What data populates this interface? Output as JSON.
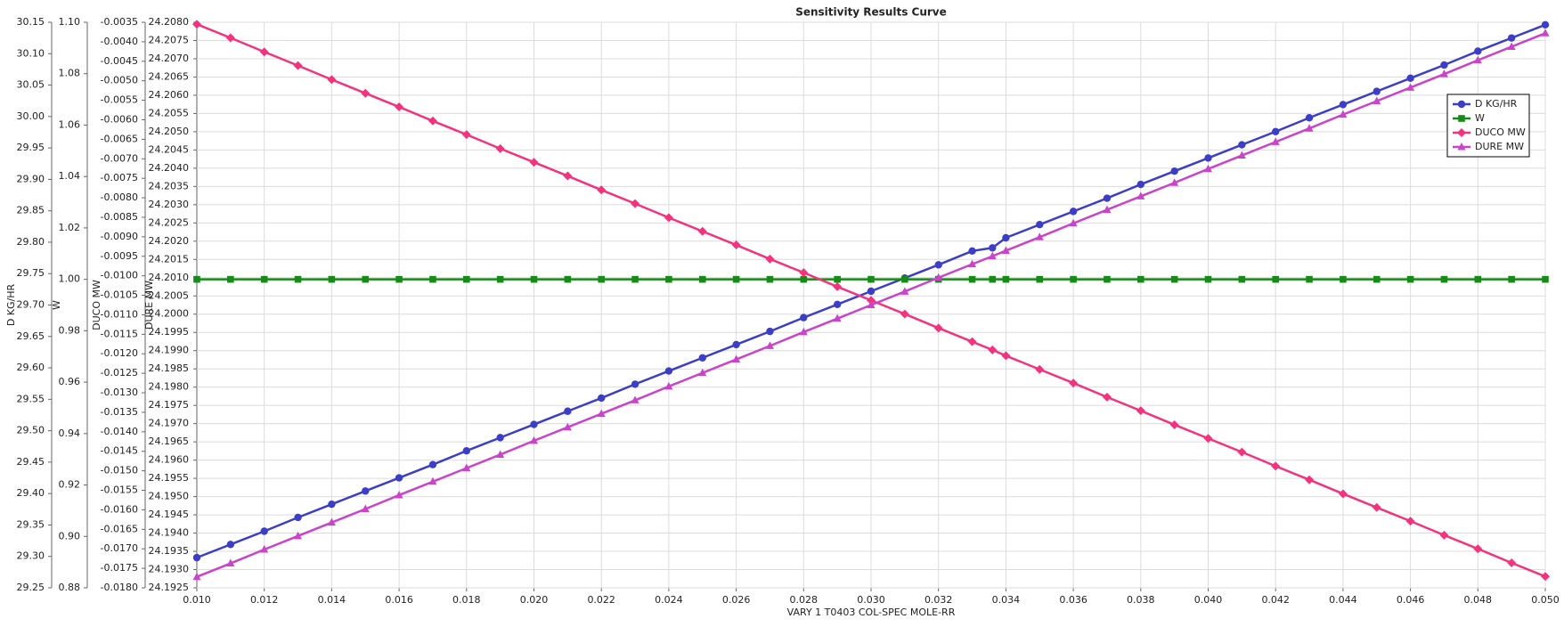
{
  "chart_data": {
    "type": "line",
    "title": "Sensitivity Results Curve",
    "xlabel": "VARY   1 T0403 COL-SPEC MOLE-RR",
    "x": [
      0.01,
      0.011,
      0.012,
      0.013,
      0.014,
      0.015,
      0.016,
      0.017,
      0.018,
      0.019,
      0.02,
      0.021,
      0.022,
      0.023,
      0.024,
      0.025,
      0.026,
      0.027,
      0.028,
      0.029,
      0.03,
      0.031,
      0.032,
      0.033,
      0.0336,
      0.034,
      0.035,
      0.036,
      0.037,
      0.038,
      0.039,
      0.04,
      0.041,
      0.042,
      0.043,
      0.044,
      0.045,
      0.046,
      0.047,
      0.048,
      0.049,
      0.05
    ],
    "xlim": [
      0.01,
      0.05
    ],
    "xticks": [
      {
        "value": 0.01,
        "label": "0.010"
      },
      0.012,
      0.014,
      0.016,
      0.018,
      {
        "value": 0.02,
        "label": "0.020"
      },
      0.022,
      0.024,
      0.026,
      0.028,
      {
        "value": 0.03,
        "label": "0.030"
      },
      0.032,
      0.034,
      0.036,
      0.038,
      {
        "value": 0.04,
        "label": "0.040"
      },
      0.042,
      0.044,
      0.046,
      0.048,
      {
        "value": 0.05,
        "label": "0.050"
      }
    ],
    "ylabel": "D KG/HR",
    "ylim": [
      29.25,
      30.15
    ],
    "yticks": [
      29.25,
      {
        "value": 29.3,
        "label": "29.30"
      },
      29.35,
      {
        "value": 29.4,
        "label": "29.40"
      },
      29.45,
      {
        "value": 29.5,
        "label": "29.50"
      },
      29.55,
      {
        "value": 29.6,
        "label": "29.60"
      },
      29.65,
      {
        "value": 29.7,
        "label": "29.70"
      },
      29.75,
      {
        "value": 29.8,
        "label": "29.80"
      },
      29.85,
      {
        "value": 29.9,
        "label": "29.90"
      },
      29.95,
      {
        "value": 30,
        "label": "30.00"
      },
      30.05,
      {
        "value": 30.1,
        "label": "30.10"
      },
      30.15
    ],
    "y2label": "W",
    "y2lim": [
      0.88,
      1.1
    ],
    "y2ticks": [
      0.88,
      {
        "value": 0.9,
        "label": "0.90"
      },
      0.92,
      0.94,
      0.96,
      0.98,
      {
        "value": 1,
        "label": "1.00"
      },
      1.02,
      1.04,
      1.06,
      1.08,
      {
        "value": 1.1,
        "label": "1.10"
      }
    ],
    "y3label": "DUCO MW",
    "y3lim": [
      -0.018,
      -0.0035
    ],
    "y3ticks": [
      {
        "value": -0.018,
        "label": "-0.0180"
      },
      -0.0175,
      {
        "value": -0.017,
        "label": "-0.0170"
      },
      -0.0165,
      {
        "value": -0.016,
        "label": "-0.0160"
      },
      -0.0155,
      {
        "value": -0.015,
        "label": "-0.0150"
      },
      -0.0145,
      {
        "value": -0.014,
        "label": "-0.0140"
      },
      -0.0135,
      {
        "value": -0.013,
        "label": "-0.0130"
      },
      -0.0125,
      {
        "value": -0.012,
        "label": "-0.0120"
      },
      -0.0115,
      {
        "value": -0.011,
        "label": "-0.0110"
      },
      -0.0105,
      {
        "value": -0.01,
        "label": "-0.0100"
      },
      -0.0095,
      {
        "value": -0.009,
        "label": "-0.0090"
      },
      -0.0085,
      {
        "value": -0.008,
        "label": "-0.0080"
      },
      -0.0075,
      {
        "value": -0.007,
        "label": "-0.0070"
      },
      -0.0065,
      {
        "value": -0.006,
        "label": "-0.0060"
      },
      -0.0055,
      {
        "value": -0.005,
        "label": "-0.0050"
      },
      -0.0045,
      {
        "value": -0.004,
        "label": "-0.0040"
      },
      -0.0035
    ],
    "y4label": "DURE MW",
    "y4lim": [
      24.1925,
      24.208
    ],
    "y4ticks": [
      24.1925,
      {
        "value": 24.193,
        "label": "24.1930"
      },
      24.1935,
      {
        "value": 24.194,
        "label": "24.1940"
      },
      24.1945,
      {
        "value": 24.195,
        "label": "24.1950"
      },
      24.1955,
      {
        "value": 24.196,
        "label": "24.1960"
      },
      24.1965,
      {
        "value": 24.197,
        "label": "24.1970"
      },
      24.1975,
      {
        "value": 24.198,
        "label": "24.1980"
      },
      24.1985,
      {
        "value": 24.199,
        "label": "24.1990"
      },
      24.1995,
      {
        "value": 24.2,
        "label": "24.2000"
      },
      24.2005,
      {
        "value": 24.201,
        "label": "24.2010"
      },
      24.2015,
      {
        "value": 24.202,
        "label": "24.2020"
      },
      24.2025,
      {
        "value": 24.203,
        "label": "24.2030"
      },
      24.2035,
      {
        "value": 24.204,
        "label": "24.2040"
      },
      24.2045,
      {
        "value": 24.205,
        "label": "24.2050"
      },
      24.2055,
      {
        "value": 24.206,
        "label": "24.2060"
      },
      24.2065,
      {
        "value": 24.207,
        "label": "24.2070"
      },
      24.2075,
      {
        "value": 24.208,
        "label": "24.2080"
      }
    ],
    "grid": true,
    "legend": "upper right",
    "series": [
      {
        "name": "D KG/HR",
        "color": "#3c3fc6",
        "marker": "circle",
        "axis": "y",
        "values": [
          29.298,
          29.319,
          29.34,
          29.362,
          29.383,
          29.404,
          29.425,
          29.446,
          29.468,
          29.489,
          29.51,
          29.531,
          29.552,
          29.574,
          29.595,
          29.616,
          29.637,
          29.658,
          29.68,
          29.701,
          29.722,
          29.743,
          29.764,
          29.786,
          29.791,
          29.807,
          29.828,
          29.849,
          29.87,
          29.892,
          29.913,
          29.934,
          29.955,
          29.976,
          29.998,
          30.019,
          30.04,
          30.061,
          30.082,
          30.104,
          30.125,
          30.146
        ]
      },
      {
        "name": "W",
        "color": "#178a17",
        "marker": "square",
        "axis": "y2",
        "values": [
          1,
          1,
          1,
          1,
          1,
          1,
          1,
          1,
          1,
          1,
          1,
          1,
          1,
          1,
          1,
          1,
          1,
          1,
          1,
          1,
          1,
          1,
          1,
          1,
          1,
          1,
          1,
          1,
          1,
          1,
          1,
          1,
          1,
          1,
          1,
          1,
          1,
          1,
          1,
          1,
          1,
          1
        ]
      },
      {
        "name": "DUCO MW",
        "color": "#f2347f",
        "marker": "diamond",
        "axis": "y3",
        "values": [
          -0.00355,
          -0.0039,
          -0.00426,
          -0.00461,
          -0.00497,
          -0.00532,
          -0.00567,
          -0.00603,
          -0.00638,
          -0.00674,
          -0.00709,
          -0.00744,
          -0.0078,
          -0.00815,
          -0.00851,
          -0.00886,
          -0.00921,
          -0.00957,
          -0.00992,
          -0.01028,
          -0.01063,
          -0.01098,
          -0.01134,
          -0.01169,
          -0.0119,
          -0.01205,
          -0.0124,
          -0.01275,
          -0.01311,
          -0.01346,
          -0.01382,
          -0.01417,
          -0.01452,
          -0.01488,
          -0.01523,
          -0.01559,
          -0.01594,
          -0.01629,
          -0.01665,
          -0.017,
          -0.01736,
          -0.01771
        ]
      },
      {
        "name": "DURE MW",
        "color": "#c944c9",
        "marker": "triangle",
        "axis": "y4",
        "values": [
          24.1928,
          24.19317,
          24.19355,
          24.19392,
          24.19429,
          24.19466,
          24.19504,
          24.19541,
          24.19578,
          24.19615,
          24.19653,
          24.1969,
          24.19727,
          24.19764,
          24.19802,
          24.19839,
          24.19876,
          24.19913,
          24.19951,
          24.19988,
          24.20025,
          24.20062,
          24.201,
          24.20137,
          24.20159,
          24.20174,
          24.20211,
          24.20249,
          24.20286,
          24.20323,
          24.2036,
          24.20398,
          24.20435,
          24.20472,
          24.20509,
          24.20547,
          24.20584,
          24.20621,
          24.20658,
          24.20696,
          24.20733,
          24.2077
        ]
      }
    ]
  }
}
